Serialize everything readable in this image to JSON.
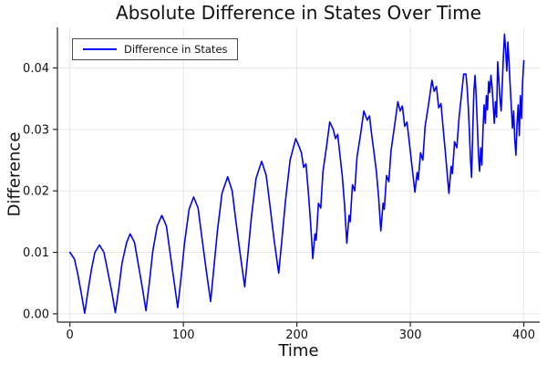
{
  "title": "Absolute Difference in States Over Time",
  "legend": {
    "label": "Difference in States"
  },
  "colors": {
    "line": "#0000fe",
    "grid": "#e6e6e6",
    "axis": "#262626",
    "text": "#111111"
  },
  "chart_data": {
    "type": "line",
    "title": "Absolute Difference in States Over Time",
    "xlabel": "Time",
    "ylabel": "Difference",
    "xlim": [
      -11,
      414
    ],
    "ylim": [
      -0.00135,
      0.0466
    ],
    "grid": true,
    "legend_position": "top-left",
    "x_ticks": [
      {
        "value": 0,
        "label": "0"
      },
      {
        "value": 100,
        "label": "100"
      },
      {
        "value": 200,
        "label": "200"
      },
      {
        "value": 300,
        "label": "300"
      },
      {
        "value": 400,
        "label": "400"
      }
    ],
    "y_ticks": [
      {
        "value": 0.0,
        "label": "0.00"
      },
      {
        "value": 0.01,
        "label": "0.01"
      },
      {
        "value": 0.02,
        "label": "0.02"
      },
      {
        "value": 0.03,
        "label": "0.03"
      },
      {
        "value": 0.04,
        "label": "0.04"
      }
    ],
    "series": [
      {
        "name": "Difference in States",
        "color": "#0000fe",
        "points": [
          [
            0,
            0.01
          ],
          [
            4,
            0.0089
          ],
          [
            7,
            0.0064
          ],
          [
            10,
            0.0034
          ],
          [
            13,
            0.0001
          ],
          [
            16,
            0.0038
          ],
          [
            19,
            0.0072
          ],
          [
            22,
            0.01
          ],
          [
            26,
            0.0112
          ],
          [
            30,
            0.01
          ],
          [
            33,
            0.0072
          ],
          [
            37,
            0.0035
          ],
          [
            40,
            0.0002
          ],
          [
            43,
            0.004
          ],
          [
            46,
            0.0083
          ],
          [
            50,
            0.0116
          ],
          [
            53,
            0.013
          ],
          [
            57,
            0.0116
          ],
          [
            60,
            0.0083
          ],
          [
            64,
            0.004
          ],
          [
            67,
            0.0005
          ],
          [
            70,
            0.005
          ],
          [
            73,
            0.0102
          ],
          [
            77,
            0.0143
          ],
          [
            81,
            0.016
          ],
          [
            85,
            0.0143
          ],
          [
            88,
            0.0103
          ],
          [
            92,
            0.005
          ],
          [
            95,
            0.001
          ],
          [
            98,
            0.006
          ],
          [
            101,
            0.0115
          ],
          [
            105,
            0.017
          ],
          [
            109,
            0.019
          ],
          [
            113,
            0.0172
          ],
          [
            116,
            0.0128
          ],
          [
            120,
            0.0072
          ],
          [
            124,
            0.002
          ],
          [
            127,
            0.0078
          ],
          [
            130,
            0.0135
          ],
          [
            134,
            0.0196
          ],
          [
            139,
            0.0223
          ],
          [
            143,
            0.02
          ],
          [
            146,
            0.0155
          ],
          [
            150,
            0.0098
          ],
          [
            154,
            0.0044
          ],
          [
            157,
            0.01
          ],
          [
            160,
            0.0158
          ],
          [
            164,
            0.022
          ],
          [
            169,
            0.0248
          ],
          [
            173,
            0.0225
          ],
          [
            176,
            0.018
          ],
          [
            180,
            0.012
          ],
          [
            184,
            0.0066
          ],
          [
            187,
            0.0125
          ],
          [
            190,
            0.0185
          ],
          [
            194,
            0.025
          ],
          [
            199,
            0.0285
          ],
          [
            202,
            0.0272
          ],
          [
            204,
            0.0262
          ],
          [
            206,
            0.0238
          ],
          [
            208,
            0.0244
          ],
          [
            210,
            0.02
          ],
          [
            212,
            0.015
          ],
          [
            214,
            0.009
          ],
          [
            216,
            0.013
          ],
          [
            217,
            0.012
          ],
          [
            219,
            0.018
          ],
          [
            221,
            0.0172
          ],
          [
            223,
            0.0232
          ],
          [
            226,
            0.027
          ],
          [
            229,
            0.0312
          ],
          [
            232,
            0.03
          ],
          [
            234,
            0.0285
          ],
          [
            236,
            0.0292
          ],
          [
            238,
            0.0258
          ],
          [
            240,
            0.0225
          ],
          [
            242,
            0.0178
          ],
          [
            244,
            0.0115
          ],
          [
            246,
            0.016
          ],
          [
            247,
            0.015
          ],
          [
            249,
            0.021
          ],
          [
            251,
            0.02
          ],
          [
            253,
            0.0255
          ],
          [
            256,
            0.029
          ],
          [
            259,
            0.033
          ],
          [
            262,
            0.0315
          ],
          [
            264,
            0.0322
          ],
          [
            266,
            0.029
          ],
          [
            268,
            0.0262
          ],
          [
            270,
            0.0232
          ],
          [
            272,
            0.019
          ],
          [
            274,
            0.0135
          ],
          [
            276,
            0.018
          ],
          [
            277,
            0.017
          ],
          [
            279,
            0.0225
          ],
          [
            281,
            0.0215
          ],
          [
            283,
            0.0265
          ],
          [
            286,
            0.0305
          ],
          [
            289,
            0.0345
          ],
          [
            291,
            0.033
          ],
          [
            293,
            0.0338
          ],
          [
            295,
            0.0305
          ],
          [
            297,
            0.0312
          ],
          [
            299,
            0.028
          ],
          [
            301,
            0.0248
          ],
          [
            304,
            0.0198
          ],
          [
            306,
            0.023
          ],
          [
            307,
            0.0218
          ],
          [
            309,
            0.0262
          ],
          [
            311,
            0.025
          ],
          [
            313,
            0.0305
          ],
          [
            316,
            0.034
          ],
          [
            319,
            0.038
          ],
          [
            321,
            0.0362
          ],
          [
            323,
            0.037
          ],
          [
            325,
            0.0335
          ],
          [
            327,
            0.0342
          ],
          [
            329,
            0.03
          ],
          [
            331,
            0.026
          ],
          [
            334,
            0.0196
          ],
          [
            336,
            0.024
          ],
          [
            337,
            0.0228
          ],
          [
            339,
            0.028
          ],
          [
            341,
            0.027
          ],
          [
            343,
            0.032
          ],
          [
            345,
            0.0355
          ],
          [
            347,
            0.039
          ],
          [
            349,
            0.039
          ],
          [
            350,
            0.037
          ],
          [
            351,
            0.0338
          ],
          [
            352,
            0.03
          ],
          [
            353,
            0.025
          ],
          [
            354,
            0.0222
          ],
          [
            355,
            0.03
          ],
          [
            356,
            0.0362
          ],
          [
            357,
            0.0388
          ],
          [
            358,
            0.0355
          ],
          [
            359,
            0.031
          ],
          [
            360,
            0.026
          ],
          [
            361,
            0.0232
          ],
          [
            362,
            0.027
          ],
          [
            363,
            0.0242
          ],
          [
            364,
            0.03
          ],
          [
            365,
            0.034
          ],
          [
            366,
            0.031
          ],
          [
            367,
            0.0355
          ],
          [
            368,
            0.0332
          ],
          [
            369,
            0.0378
          ],
          [
            370,
            0.036
          ],
          [
            371,
            0.0388
          ],
          [
            372,
            0.037
          ],
          [
            373,
            0.034
          ],
          [
            374,
            0.031
          ],
          [
            375,
            0.0345
          ],
          [
            376,
            0.032
          ],
          [
            377,
            0.041
          ],
          [
            378,
            0.038
          ],
          [
            379,
            0.035
          ],
          [
            380,
            0.033
          ],
          [
            381,
            0.0372
          ],
          [
            382,
            0.042
          ],
          [
            383,
            0.0455
          ],
          [
            384,
            0.0428
          ],
          [
            385,
            0.0395
          ],
          [
            386,
            0.0442
          ],
          [
            387,
            0.0408
          ],
          [
            388,
            0.0372
          ],
          [
            389,
            0.0335
          ],
          [
            390,
            0.0302
          ],
          [
            391,
            0.033
          ],
          [
            392,
            0.0285
          ],
          [
            393,
            0.0258
          ],
          [
            394,
            0.0308
          ],
          [
            395,
            0.034
          ],
          [
            396,
            0.029
          ],
          [
            397,
            0.0355
          ],
          [
            398,
            0.0318
          ],
          [
            399,
            0.038
          ],
          [
            400,
            0.0412
          ]
        ]
      }
    ]
  }
}
